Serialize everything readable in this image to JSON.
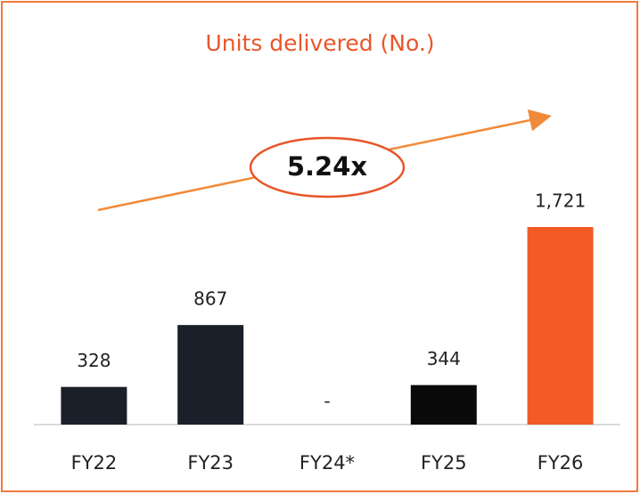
{
  "chart_data": {
    "type": "bar",
    "title": "Units delivered (No.)",
    "categories": [
      "FY22",
      "FY23",
      "FY24*",
      "FY25",
      "FY26"
    ],
    "values": [
      328,
      867,
      null,
      344,
      1721
    ],
    "value_labels": [
      "328",
      "867",
      "-",
      "344",
      "1,721"
    ],
    "colors": [
      "#1b1f2a",
      "#1b1f2a",
      null,
      "#0a0a0a",
      "#f25a26"
    ],
    "annotation": "5.24x"
  }
}
